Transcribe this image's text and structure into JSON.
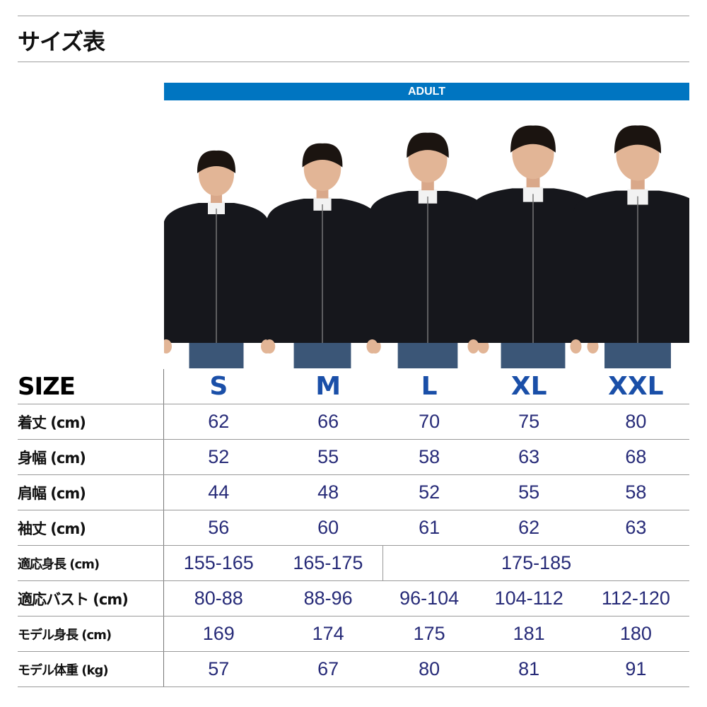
{
  "title": "サイズ表",
  "band_label": "ADULT",
  "colors": {
    "band": "#0075c1",
    "size_header": "#1a4fa8",
    "values": "#272b78"
  },
  "table": {
    "header": {
      "label": "SIZE",
      "sizes": [
        "S",
        "M",
        "L",
        "XL",
        "XXL"
      ]
    },
    "rows": [
      {
        "label": "着丈 (cm)",
        "values": [
          "62",
          "66",
          "70",
          "75",
          "80"
        ]
      },
      {
        "label": "身幅 (cm)",
        "values": [
          "52",
          "55",
          "58",
          "63",
          "68"
        ]
      },
      {
        "label": "肩幅 (cm)",
        "values": [
          "44",
          "48",
          "52",
          "55",
          "58"
        ]
      },
      {
        "label": "袖丈 (cm)",
        "values": [
          "56",
          "60",
          "61",
          "62",
          "63"
        ]
      },
      {
        "label": "適応身長 (cm)",
        "values": [
          "155-165",
          "165-175",
          "175-185"
        ]
      },
      {
        "label": "適応バスト (cm)",
        "values": [
          "80-88",
          "88-96",
          "96-104",
          "104-112",
          "112-120"
        ]
      },
      {
        "label": "モデル身長 (cm)",
        "values": [
          "169",
          "174",
          "175",
          "181",
          "180"
        ]
      },
      {
        "label": "モデル体重 (kg)",
        "values": [
          "57",
          "67",
          "80",
          "81",
          "91"
        ]
      }
    ]
  }
}
